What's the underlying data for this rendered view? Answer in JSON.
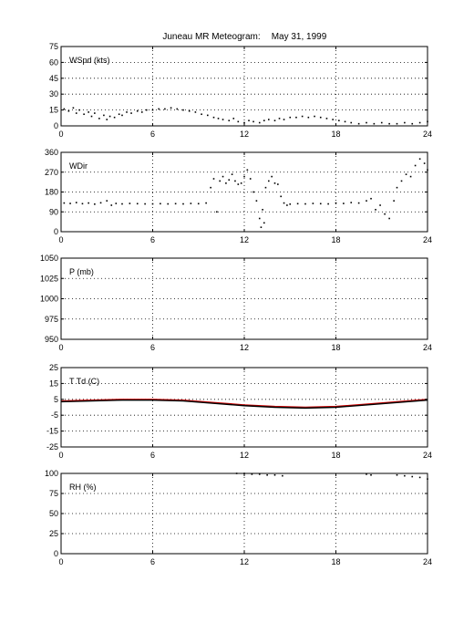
{
  "figure": {
    "title": "Juneau MR Meteogram:",
    "date": "May 31, 1999"
  },
  "chart_data": [
    {
      "type": "scatter",
      "label": "WSpd (kts)",
      "x_ticks": [
        "0",
        "6",
        "12",
        "18",
        "24"
      ],
      "xlim": [
        0,
        24
      ],
      "ylim": [
        0,
        75
      ],
      "y_ticks": [
        "0",
        "15",
        "30",
        "45",
        "60",
        "75"
      ],
      "grid": true,
      "color": "#000000",
      "points": [
        [
          0.2,
          16
        ],
        [
          0.5,
          14
        ],
        [
          0.8,
          17
        ],
        [
          1.0,
          12
        ],
        [
          1.2,
          15
        ],
        [
          1.5,
          11
        ],
        [
          1.8,
          13
        ],
        [
          2.0,
          9
        ],
        [
          2.2,
          12
        ],
        [
          2.5,
          7
        ],
        [
          2.8,
          10
        ],
        [
          3.0,
          6
        ],
        [
          3.2,
          9
        ],
        [
          3.5,
          8
        ],
        [
          3.8,
          11
        ],
        [
          4.0,
          10
        ],
        [
          4.3,
          13
        ],
        [
          4.6,
          12
        ],
        [
          5.0,
          14
        ],
        [
          5.3,
          13
        ],
        [
          5.6,
          15
        ],
        [
          6.0,
          15
        ],
        [
          6.4,
          16
        ],
        [
          6.8,
          16
        ],
        [
          7.2,
          17
        ],
        [
          7.6,
          16
        ],
        [
          8.0,
          15
        ],
        [
          8.4,
          14
        ],
        [
          8.8,
          13
        ],
        [
          9.2,
          11
        ],
        [
          9.6,
          10
        ],
        [
          10.0,
          8
        ],
        [
          10.3,
          7
        ],
        [
          10.6,
          6
        ],
        [
          11.0,
          5
        ],
        [
          11.3,
          7
        ],
        [
          11.6,
          4
        ],
        [
          12.0,
          3
        ],
        [
          12.3,
          5
        ],
        [
          12.6,
          4
        ],
        [
          13.0,
          3
        ],
        [
          13.3,
          5
        ],
        [
          13.6,
          6
        ],
        [
          14.0,
          5
        ],
        [
          14.3,
          7
        ],
        [
          14.6,
          6
        ],
        [
          15.0,
          8
        ],
        [
          15.4,
          8
        ],
        [
          15.8,
          9
        ],
        [
          16.2,
          8
        ],
        [
          16.6,
          9
        ],
        [
          17.0,
          8
        ],
        [
          17.4,
          7
        ],
        [
          17.8,
          6
        ],
        [
          18.2,
          5
        ],
        [
          18.6,
          4
        ],
        [
          19.0,
          3
        ],
        [
          19.5,
          2
        ],
        [
          20.0,
          3
        ],
        [
          20.5,
          2
        ],
        [
          21.0,
          3
        ],
        [
          21.5,
          2
        ],
        [
          22.0,
          2
        ],
        [
          22.5,
          3
        ],
        [
          23.0,
          2
        ],
        [
          23.5,
          3
        ],
        [
          24.0,
          4
        ]
      ]
    },
    {
      "type": "scatter",
      "label": "WDir",
      "x_ticks": [
        "0",
        "6",
        "12",
        "18",
        "24"
      ],
      "xlim": [
        0,
        24
      ],
      "ylim": [
        0,
        360
      ],
      "y_ticks": [
        "0",
        "90",
        "180",
        "270",
        "360"
      ],
      "grid": true,
      "color": "#000000",
      "points": [
        [
          0.2,
          130
        ],
        [
          0.6,
          128
        ],
        [
          1.0,
          132
        ],
        [
          1.4,
          127
        ],
        [
          1.8,
          130
        ],
        [
          2.2,
          125
        ],
        [
          2.6,
          131
        ],
        [
          3.0,
          140
        ],
        [
          3.3,
          120
        ],
        [
          3.6,
          128
        ],
        [
          4.0,
          126
        ],
        [
          4.5,
          128
        ],
        [
          5.0,
          127
        ],
        [
          5.5,
          126
        ],
        [
          6.0,
          126
        ],
        [
          6.5,
          127
        ],
        [
          7.0,
          126
        ],
        [
          7.5,
          127
        ],
        [
          8.0,
          126
        ],
        [
          8.5,
          128
        ],
        [
          9.0,
          127
        ],
        [
          9.5,
          130
        ],
        [
          9.8,
          200
        ],
        [
          10.0,
          240
        ],
        [
          10.2,
          90
        ],
        [
          10.4,
          230
        ],
        [
          10.6,
          250
        ],
        [
          10.8,
          220
        ],
        [
          11.0,
          235
        ],
        [
          11.2,
          260
        ],
        [
          11.4,
          230
        ],
        [
          11.6,
          215
        ],
        [
          11.8,
          220
        ],
        [
          12.0,
          250
        ],
        [
          12.2,
          280
        ],
        [
          12.4,
          240
        ],
        [
          12.6,
          180
        ],
        [
          12.8,
          140
        ],
        [
          13.0,
          60
        ],
        [
          13.1,
          20
        ],
        [
          13.2,
          100
        ],
        [
          13.3,
          40
        ],
        [
          13.4,
          200
        ],
        [
          13.6,
          230
        ],
        [
          13.8,
          250
        ],
        [
          14.0,
          220
        ],
        [
          14.2,
          215
        ],
        [
          14.4,
          160
        ],
        [
          14.6,
          130
        ],
        [
          14.8,
          120
        ],
        [
          15.0,
          125
        ],
        [
          15.5,
          127
        ],
        [
          16.0,
          126
        ],
        [
          16.5,
          128
        ],
        [
          17.0,
          127
        ],
        [
          17.5,
          126
        ],
        [
          18.0,
          130
        ],
        [
          18.5,
          128
        ],
        [
          19.0,
          132
        ],
        [
          19.5,
          130
        ],
        [
          20.0,
          140
        ],
        [
          20.3,
          150
        ],
        [
          20.6,
          100
        ],
        [
          20.9,
          120
        ],
        [
          21.2,
          80
        ],
        [
          21.5,
          60
        ],
        [
          21.8,
          140
        ],
        [
          22.0,
          200
        ],
        [
          22.3,
          230
        ],
        [
          22.6,
          260
        ],
        [
          22.9,
          250
        ],
        [
          23.2,
          300
        ],
        [
          23.5,
          330
        ],
        [
          23.8,
          310
        ],
        [
          24.0,
          280
        ]
      ]
    },
    {
      "type": "line",
      "label": "P (mb)",
      "x_ticks": [
        "0",
        "6",
        "12",
        "18",
        "24"
      ],
      "xlim": [
        0,
        24
      ],
      "ylim": [
        950,
        1050
      ],
      "y_ticks": [
        "950",
        "975",
        "1000",
        "1025",
        "1050"
      ],
      "grid": true,
      "series": []
    },
    {
      "type": "line",
      "label": "T Td (C)",
      "x_ticks": [
        "0",
        "6",
        "12",
        "18",
        "24"
      ],
      "xlim": [
        0,
        24
      ],
      "ylim": [
        -25,
        25
      ],
      "y_ticks": [
        "-25",
        "-15",
        "-5",
        "5",
        "15",
        "25"
      ],
      "grid": true,
      "series": [
        {
          "color": "#cc0000",
          "x": [
            0,
            2,
            4,
            6,
            8,
            10,
            12,
            14,
            16,
            18,
            20,
            22,
            24
          ],
          "y": [
            4,
            4.5,
            5,
            5,
            4.5,
            3,
            1.5,
            0.5,
            0,
            0.5,
            2,
            3.5,
            5
          ]
        },
        {
          "color": "#000000",
          "x": [
            0,
            2,
            4,
            6,
            8,
            10,
            12,
            14,
            16,
            18,
            20,
            22,
            24
          ],
          "y": [
            3.5,
            4,
            4.5,
            4.5,
            4,
            2.5,
            1,
            0,
            -0.5,
            0,
            1.5,
            3,
            4.5
          ]
        }
      ]
    },
    {
      "type": "scatter",
      "label": "RH (%)",
      "x_ticks": [
        "0",
        "6",
        "12",
        "18",
        "24"
      ],
      "xlim": [
        0,
        24
      ],
      "ylim": [
        0,
        100
      ],
      "y_ticks": [
        "0",
        "25",
        "50",
        "75",
        "100"
      ],
      "grid": true,
      "color": "#000000",
      "points": [
        [
          11.5,
          100
        ],
        [
          12.0,
          100
        ],
        [
          12.5,
          99
        ],
        [
          13.0,
          99
        ],
        [
          13.5,
          98
        ],
        [
          14.0,
          98
        ],
        [
          14.5,
          97
        ],
        [
          20.0,
          99
        ],
        [
          20.3,
          98
        ],
        [
          22.0,
          98
        ],
        [
          22.5,
          97
        ],
        [
          23.0,
          96
        ],
        [
          23.5,
          95
        ],
        [
          24.0,
          93
        ]
      ]
    }
  ]
}
